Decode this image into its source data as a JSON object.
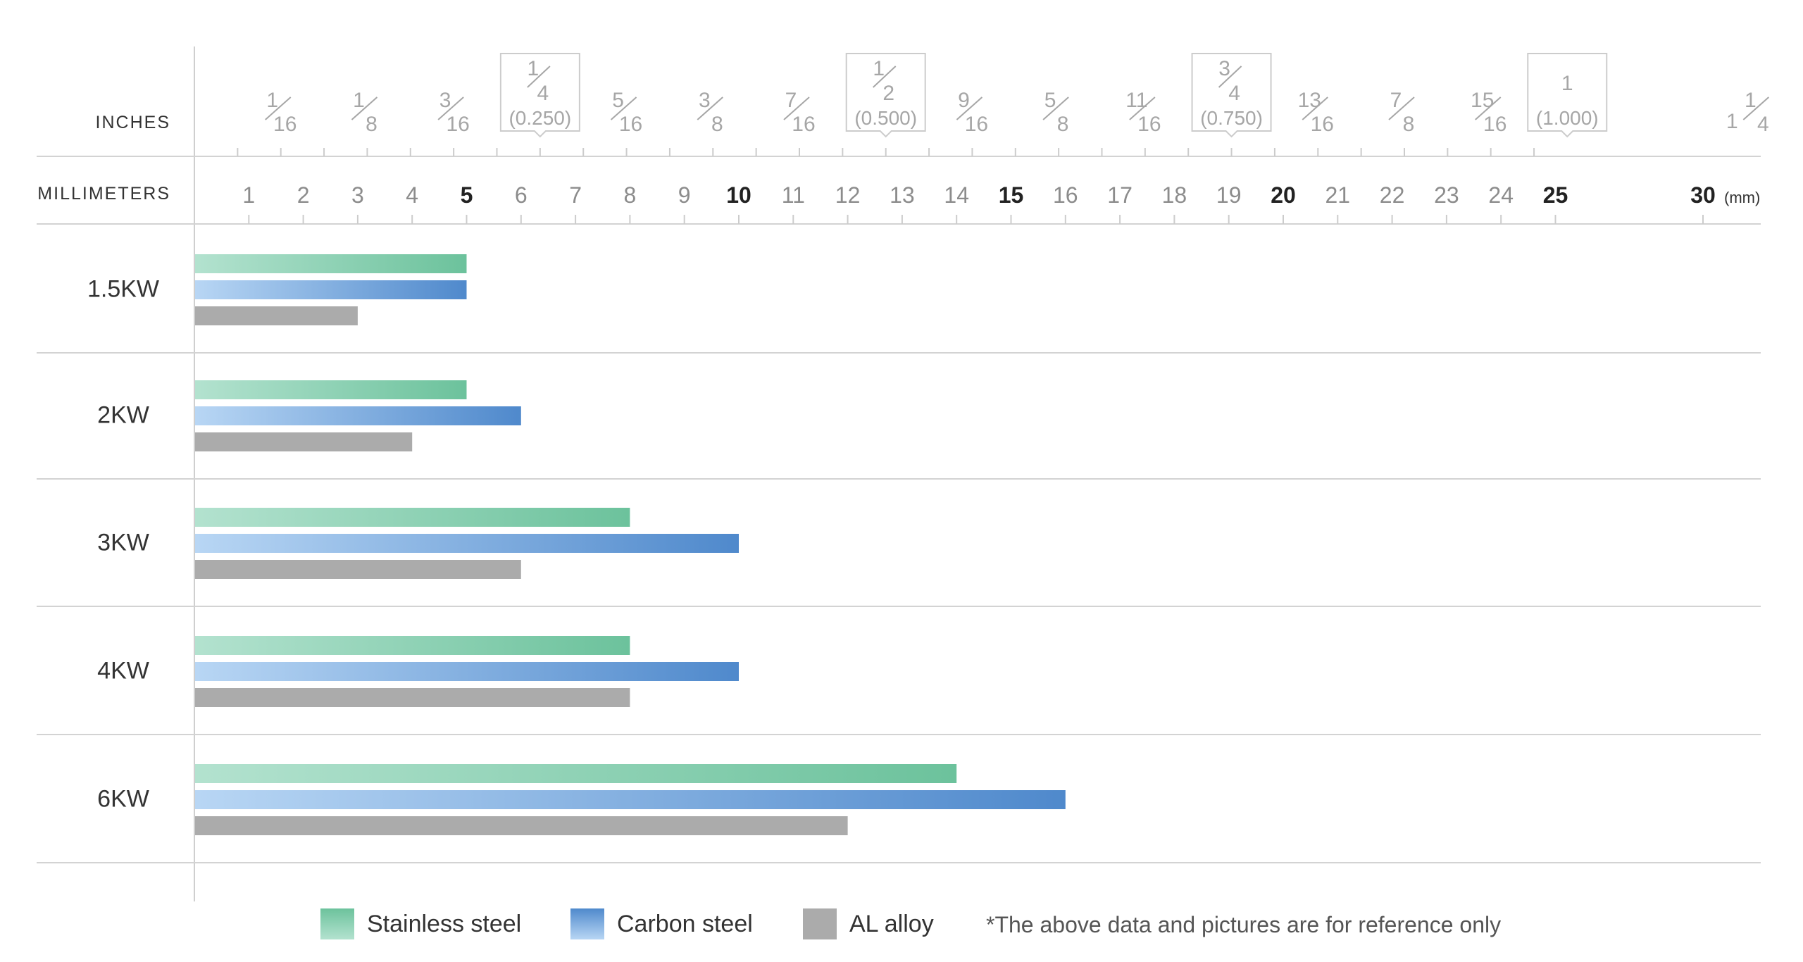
{
  "scale_labels": {
    "inches": "INCHES",
    "millimeters": "MILLIMETERS"
  },
  "inch_ticks": [
    {
      "num": "1",
      "den": "16",
      "mm": 1.5875
    },
    {
      "num": "1",
      "den": "8",
      "mm": 3.175
    },
    {
      "num": "3",
      "den": "16",
      "mm": 4.7625
    },
    {
      "num": "1",
      "den": "4",
      "mm": 6.35,
      "decimal": "(0.250)"
    },
    {
      "num": "5",
      "den": "16",
      "mm": 7.9375
    },
    {
      "num": "3",
      "den": "8",
      "mm": 9.525
    },
    {
      "num": "7",
      "den": "16",
      "mm": 11.1125
    },
    {
      "num": "1",
      "den": "2",
      "mm": 12.7,
      "decimal": "(0.500)"
    },
    {
      "num": "9",
      "den": "16",
      "mm": 14.2875
    },
    {
      "num": "5",
      "den": "8",
      "mm": 15.875
    },
    {
      "num": "11",
      "den": "16",
      "mm": 17.4625
    },
    {
      "num": "3",
      "den": "4",
      "mm": 19.05,
      "decimal": "(0.750)"
    },
    {
      "num": "13",
      "den": "16",
      "mm": 20.6375
    },
    {
      "num": "7",
      "den": "8",
      "mm": 22.225
    },
    {
      "num": "15",
      "den": "16",
      "mm": 23.8125
    },
    {
      "whole": "1",
      "mm": 25.4,
      "decimal": "(1.000)"
    },
    {
      "whole": "1",
      "num": "1",
      "den": "4",
      "mm": 31.75
    }
  ],
  "chart_data": {
    "type": "bar",
    "orientation": "horizontal",
    "xunit": "(mm)",
    "x_ticks": [
      1,
      2,
      3,
      4,
      5,
      6,
      7,
      8,
      9,
      10,
      11,
      12,
      13,
      14,
      15,
      16,
      17,
      18,
      19,
      20,
      21,
      22,
      23,
      24,
      25,
      30
    ],
    "x_ticks_bold": [
      5,
      10,
      15,
      20,
      25,
      30
    ],
    "categories": [
      "1.5KW",
      "2KW",
      "3KW",
      "4KW",
      "6KW"
    ],
    "series": [
      {
        "name": "Stainless steel",
        "values": [
          5,
          5,
          8,
          8,
          14
        ],
        "color": "#6cc29c"
      },
      {
        "name": "Carbon steel",
        "values": [
          5,
          6,
          10,
          10,
          16
        ],
        "color": "#4f89cc"
      },
      {
        "name": "AL alloy",
        "values": [
          3,
          4,
          6,
          8,
          12
        ],
        "color": "#ababab"
      }
    ],
    "grid": true,
    "legend": "bottom",
    "note": "*The above data and pictures are for reference only"
  }
}
